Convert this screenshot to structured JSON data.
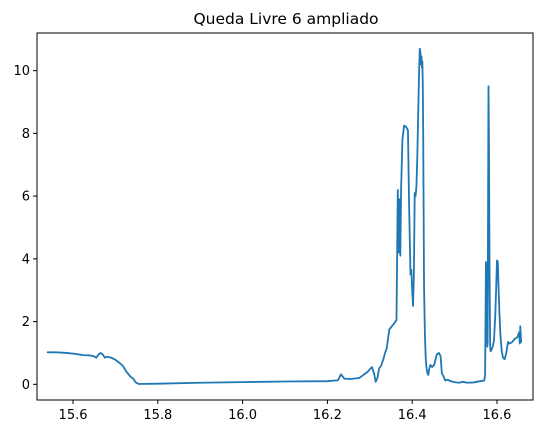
{
  "chart_data": {
    "type": "line",
    "title": "Queda Livre 6 ampliado",
    "xlabel": "",
    "ylabel": "",
    "xlim": [
      15.515,
      16.685
    ],
    "ylim": [
      -0.5,
      11.2
    ],
    "x_ticks": [
      15.6,
      15.8,
      16.0,
      16.2,
      16.4,
      16.6
    ],
    "x_tick_labels": [
      "15.6",
      "15.8",
      "16.0",
      "16.2",
      "16.4",
      "16.6"
    ],
    "y_ticks": [
      0,
      2,
      4,
      6,
      8,
      10
    ],
    "y_tick_labels": [
      "0",
      "2",
      "4",
      "6",
      "8",
      "10"
    ],
    "grid": false,
    "legend": false,
    "series": [
      {
        "name": "",
        "color": "#1f77b4",
        "x": [
          15.54,
          15.56,
          15.585,
          15.605,
          15.625,
          15.64,
          15.648,
          15.655,
          15.66,
          15.665,
          15.67,
          15.675,
          15.68,
          15.69,
          15.7,
          15.71,
          15.718,
          15.725,
          15.735,
          15.742,
          15.748,
          15.755,
          15.8,
          15.9,
          16.0,
          16.1,
          16.2,
          16.225,
          16.232,
          16.24,
          16.255,
          16.275,
          16.295,
          16.305,
          16.31,
          16.314,
          16.318,
          16.322,
          16.327,
          16.332,
          16.336,
          16.34,
          16.346,
          16.352,
          16.358,
          16.363,
          16.366,
          16.368,
          16.37,
          16.372,
          16.374,
          16.377,
          16.381,
          16.386,
          16.39,
          16.393,
          16.396,
          16.398,
          16.4,
          16.402,
          16.404,
          16.406,
          16.408,
          16.41,
          16.412,
          16.414,
          16.416,
          16.418,
          16.419,
          16.42,
          16.421,
          16.422,
          16.423,
          16.424,
          16.425,
          16.426,
          16.427,
          16.428,
          16.43,
          16.432,
          16.434,
          16.436,
          16.438,
          16.44,
          16.443,
          16.447,
          16.452,
          16.458,
          16.463,
          16.467,
          16.47,
          16.473,
          16.478,
          16.484,
          16.49,
          16.5,
          16.51,
          16.52,
          16.53,
          16.545,
          16.56,
          16.57,
          16.572,
          16.574,
          16.575,
          16.576,
          16.577,
          16.578,
          16.579,
          16.58,
          16.581,
          16.582,
          16.583,
          16.584,
          16.585,
          16.587,
          16.59,
          16.593,
          16.596,
          16.598,
          16.6,
          16.602,
          16.604,
          16.606,
          16.608,
          16.611,
          16.614,
          16.618,
          16.622,
          16.626,
          16.63,
          16.636,
          16.642,
          16.648,
          16.652,
          16.654,
          16.655,
          16.656,
          16.657
        ],
        "y": [
          1.02,
          1.02,
          1.0,
          0.97,
          0.93,
          0.92,
          0.9,
          0.85,
          0.95,
          1.0,
          0.95,
          0.85,
          0.88,
          0.85,
          0.78,
          0.68,
          0.58,
          0.42,
          0.25,
          0.18,
          0.06,
          0.01,
          0.02,
          0.05,
          0.07,
          0.09,
          0.1,
          0.13,
          0.32,
          0.18,
          0.17,
          0.2,
          0.4,
          0.55,
          0.35,
          0.08,
          0.2,
          0.5,
          0.6,
          0.8,
          1.0,
          1.15,
          1.75,
          1.85,
          1.95,
          2.05,
          6.2,
          4.2,
          5.9,
          4.1,
          6.3,
          7.8,
          8.25,
          8.2,
          8.1,
          5.5,
          3.5,
          3.65,
          3.0,
          2.5,
          3.5,
          6.1,
          6.0,
          6.3,
          7.2,
          8.5,
          9.8,
          10.7,
          10.6,
          10.5,
          10.2,
          10.45,
          10.1,
          10.3,
          9.6,
          8.0,
          5.5,
          3.1,
          1.6,
          0.8,
          0.5,
          0.35,
          0.3,
          0.48,
          0.62,
          0.55,
          0.62,
          0.95,
          1.0,
          0.9,
          0.35,
          0.28,
          0.12,
          0.15,
          0.1,
          0.07,
          0.05,
          0.08,
          0.05,
          0.06,
          0.1,
          0.12,
          0.3,
          3.9,
          1.5,
          3.8,
          1.2,
          1.3,
          5.5,
          9.5,
          8.0,
          5.0,
          2.7,
          1.2,
          1.05,
          1.1,
          1.2,
          1.4,
          2.2,
          3.0,
          3.95,
          3.9,
          3.0,
          2.2,
          1.6,
          1.1,
          0.85,
          0.8,
          1.0,
          1.35,
          1.3,
          1.35,
          1.45,
          1.5,
          1.65,
          1.3,
          1.85,
          1.6,
          1.35
        ]
      }
    ]
  }
}
